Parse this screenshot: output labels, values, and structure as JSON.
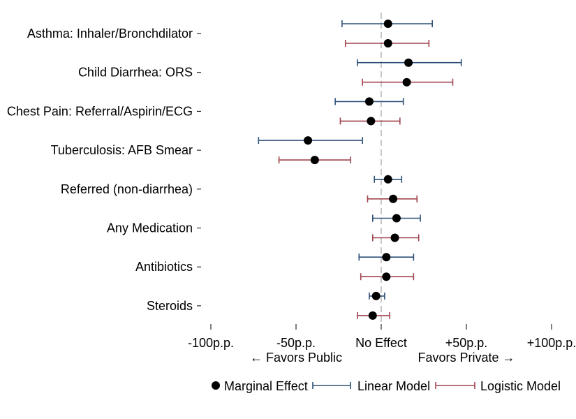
{
  "chart_data": {
    "type": "dot-whisker",
    "title": "",
    "xlabel": "",
    "ylabel": "",
    "xlim": [
      -100,
      100
    ],
    "x_ticks": [
      {
        "value": -100,
        "label": "-100p.p."
      },
      {
        "value": -50,
        "label": "-50p.p."
      },
      {
        "value": 0,
        "label": "No Effect"
      },
      {
        "value": 50,
        "label": "+50p.p."
      },
      {
        "value": 100,
        "label": "+100p.p."
      }
    ],
    "direction_labels": {
      "left": "← Favors Public",
      "right": "Favors Private →"
    },
    "reference_line": 0,
    "categories": [
      "Asthma: Inhaler/Bronchdilator",
      "Child Diarrhea: ORS",
      "Chest Pain: Referral/Aspirin/ECG",
      "Tuberculosis: AFB Smear",
      "Referred (non-diarrhea)",
      "Any Medication",
      "Antibiotics",
      "Steroids"
    ],
    "series": [
      {
        "name": "Linear Model",
        "color": "#2e5078",
        "estimates": [
          4,
          16,
          -7,
          -43,
          4,
          9,
          3,
          -3
        ],
        "ci_low": [
          -23,
          -14,
          -27,
          -72,
          -4,
          -5,
          -13,
          -7
        ],
        "ci_high": [
          30,
          47,
          13,
          -11,
          12,
          23,
          19,
          2
        ]
      },
      {
        "name": "Logistic Model",
        "color": "#a0434d",
        "estimates": [
          4,
          15,
          -6,
          -39,
          7,
          8,
          3,
          -5
        ],
        "ci_low": [
          -21,
          -11,
          -24,
          -60,
          -8,
          -5,
          -12,
          -14
        ],
        "ci_high": [
          28,
          42,
          11,
          -18,
          21,
          22,
          19,
          5
        ]
      }
    ],
    "legend": {
      "position": "bottom",
      "items": [
        "Marginal Effect",
        "Linear Model",
        "Logistic Model"
      ]
    },
    "colors": {
      "point": "#000000",
      "reference": "#c8c8c8"
    }
  }
}
